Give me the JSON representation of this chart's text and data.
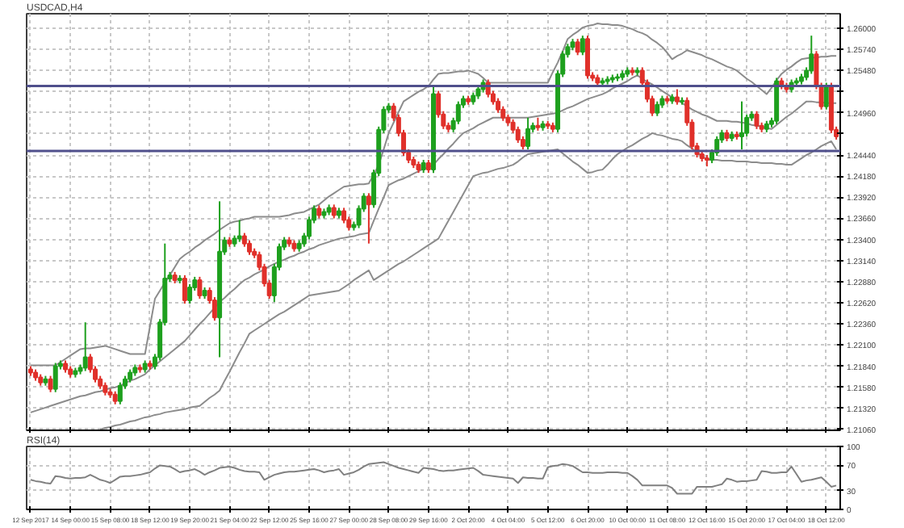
{
  "chart_data": [
    {
      "type": "candlestick",
      "title": "USDCAD,H4",
      "tick_labels": "y",
      "grid": true,
      "colors": [
        "#e0302a",
        "#e0302a",
        "#e0302a",
        "#1ea01e",
        "#e0302a",
        "#1ea01e",
        "#1ea01e",
        "#e0302a",
        "#e0302a",
        "#1ea01e",
        "#1ea01e",
        "#1ea01e",
        "#e0302a",
        "#e0302a",
        "#e0302a",
        "#e0302a",
        "#e0302a",
        "#e0302a",
        "#1ea01e",
        "#1ea01e",
        "#1ea01e",
        "#1ea01e",
        "#e0302a",
        "#1ea01e",
        "#e0302a",
        "#1ea01e",
        "#1ea01e",
        "#1ea01e",
        "#1ea01e",
        "#e0302a",
        "#1ea01e",
        "#e0302a",
        "#1ea01e",
        "#1ea01e",
        "#e0302a",
        "#1ea01e",
        "#e0302a",
        "#e0302a",
        "#1ea01e",
        "#1ea01e",
        "#e0302a",
        "#1ea01e",
        "#1ea01e",
        "#e0302a",
        "#e0302a",
        "#e0302a",
        "#e0302a",
        "#e0302a",
        "#e0302a",
        "#1ea01e",
        "#1ea01e",
        "#1ea01e",
        "#e0302a",
        "#e0302a",
        "#1ea01e",
        "#1ea01e",
        "#1ea01e",
        "#1ea01e",
        "#e0302a",
        "#1ea01e",
        "#1ea01e",
        "#e0302a",
        "#1ea01e",
        "#e0302a",
        "#e0302a",
        "#1ea01e",
        "#1ea01e",
        "#1ea01e",
        "#e0302a",
        "#1ea01e",
        "#1ea01e",
        "#1ea01e",
        "#1ea01e",
        "#e0302a",
        "#e0302a",
        "#e0302a",
        "#e0302a",
        "#e0302a",
        "#e0302a",
        "#1ea01e",
        "#e0302a",
        "#1ea01e",
        "#e0302a",
        "#e0302a",
        "#e0302a",
        "#1ea01e",
        "#1ea01e",
        "#1ea01e",
        "#e0302a",
        "#1ea01e",
        "#1ea01e",
        "#1ea01e",
        "#e0302a",
        "#e0302a",
        "#e0302a",
        "#e0302a",
        "#e0302a",
        "#e0302a",
        "#e0302a",
        "#e0302a",
        "#1ea01e",
        "#1ea01e",
        "#e0302a",
        "#1ea01e",
        "#e0302a",
        "#e0302a",
        "#1ea01e",
        "#1ea01e",
        "#1ea01e",
        "#1ea01e",
        "#e0302a",
        "#1ea01e",
        "#e0302a",
        "#e0302a",
        "#e0302a",
        "#1ea01e",
        "#1ea01e",
        "#1ea01e",
        "#1ea01e",
        "#1ea01e",
        "#1ea01e",
        "#e0302a",
        "#1ea01e",
        "#e0302a",
        "#e0302a",
        "#e0302a",
        "#1ea01e",
        "#1ea01e",
        "#e0302a",
        "#1ea01e",
        "#e0302a",
        "#1ea01e",
        "#e0302a",
        "#e0302a",
        "#e0302a",
        "#e0302a",
        "#e0302a",
        "#1ea01e",
        "#1ea01e",
        "#1ea01e",
        "#e0302a",
        "#1ea01e",
        "#e0302a",
        "#1ea01e",
        "#1ea01e",
        "#1ea01e",
        "#e0302a",
        "#e0302a",
        "#1ea01e",
        "#1ea01e",
        "#1ea01e",
        "#e0302a",
        "#e0302a",
        "#1ea01e",
        "#1ea01e",
        "#1ea01e",
        "#1ea01e",
        "#1ea01e",
        "#e0302a",
        "#e0302a",
        "#1ea01e",
        "#e0302a",
        "#e0302a"
      ],
      "ohlc": [
        [
          1.218,
          1.2184,
          1.2172,
          1.2176
        ],
        [
          1.2176,
          1.218,
          1.2166,
          1.217
        ],
        [
          1.217,
          1.2174,
          1.216,
          1.2164
        ],
        [
          1.2164,
          1.2172,
          1.216,
          1.2168
        ],
        [
          1.2168,
          1.2172,
          1.2152,
          1.2156
        ],
        [
          1.2156,
          1.2188,
          1.2152,
          1.2184
        ],
        [
          1.2184,
          1.2191,
          1.218,
          1.2187
        ],
        [
          1.2187,
          1.2191,
          1.2176,
          1.218
        ],
        [
          1.218,
          1.2184,
          1.217,
          1.2174
        ],
        [
          1.2174,
          1.2182,
          1.217,
          1.2178
        ],
        [
          1.2178,
          1.2186,
          1.2174,
          1.2182
        ],
        [
          1.2182,
          1.2238,
          1.2178,
          1.2195
        ],
        [
          1.2195,
          1.2199,
          1.2176,
          1.218
        ],
        [
          1.218,
          1.2184,
          1.2164,
          1.2168
        ],
        [
          1.2168,
          1.2172,
          1.2156,
          1.216
        ],
        [
          1.216,
          1.2164,
          1.2148,
          1.2152
        ],
        [
          1.2152,
          1.2156,
          1.2145,
          1.2149
        ],
        [
          1.2149,
          1.2153,
          1.2137,
          1.2141
        ],
        [
          1.2141,
          1.2164,
          1.2137,
          1.216
        ],
        [
          1.216,
          1.2172,
          1.2156,
          1.2168
        ],
        [
          1.2168,
          1.218,
          1.2164,
          1.2176
        ],
        [
          1.2176,
          1.2186,
          1.2172,
          1.2182
        ],
        [
          1.2182,
          1.2186,
          1.2176,
          1.218
        ],
        [
          1.218,
          1.2191,
          1.2176,
          1.2187
        ],
        [
          1.2187,
          1.2191,
          1.218,
          1.2184
        ],
        [
          1.2184,
          1.2199,
          1.218,
          1.2195
        ],
        [
          1.2195,
          1.2242,
          1.2191,
          1.2238
        ],
        [
          1.2238,
          1.2335,
          1.2234,
          1.2292
        ],
        [
          1.2292,
          1.23,
          1.2288,
          1.2296
        ],
        [
          1.2296,
          1.23,
          1.2286,
          1.229
        ],
        [
          1.229,
          1.2296,
          1.2286,
          1.2292
        ],
        [
          1.2292,
          1.2296,
          1.2261,
          1.2265
        ],
        [
          1.2265,
          1.2285,
          1.2261,
          1.2281
        ],
        [
          1.2281,
          1.2294,
          1.2277,
          1.229
        ],
        [
          1.229,
          1.2294,
          1.2267,
          1.2271
        ],
        [
          1.2271,
          1.2281,
          1.2267,
          1.2277
        ],
        [
          1.2277,
          1.2281,
          1.2261,
          1.2265
        ],
        [
          1.2265,
          1.2269,
          1.224,
          1.2244
        ],
        [
          1.2244,
          1.2387,
          1.2195,
          1.2325
        ],
        [
          1.2325,
          1.2343,
          1.2321,
          1.2339
        ],
        [
          1.2339,
          1.2343,
          1.2331,
          1.2335
        ],
        [
          1.2335,
          1.2345,
          1.2331,
          1.2341
        ],
        [
          1.2341,
          1.2364,
          1.2337,
          1.2344
        ],
        [
          1.2344,
          1.2348,
          1.2331,
          1.2335
        ],
        [
          1.2335,
          1.2339,
          1.2321,
          1.2325
        ],
        [
          1.2325,
          1.2329,
          1.2317,
          1.2321
        ],
        [
          1.2321,
          1.2325,
          1.2302,
          1.2306
        ],
        [
          1.2306,
          1.231,
          1.2282,
          1.2286
        ],
        [
          1.2286,
          1.229,
          1.2267,
          1.2271
        ],
        [
          1.2271,
          1.231,
          1.2263,
          1.2306
        ],
        [
          1.2306,
          1.2335,
          1.2302,
          1.2331
        ],
        [
          1.2331,
          1.2343,
          1.2327,
          1.2339
        ],
        [
          1.2339,
          1.2343,
          1.2331,
          1.2335
        ],
        [
          1.2335,
          1.2339,
          1.2325,
          1.2329
        ],
        [
          1.2329,
          1.2339,
          1.2325,
          1.2335
        ],
        [
          1.2335,
          1.2348,
          1.2331,
          1.2344
        ],
        [
          1.2344,
          1.2368,
          1.234,
          1.2364
        ],
        [
          1.2364,
          1.2382,
          1.236,
          1.2378
        ],
        [
          1.2378,
          1.2382,
          1.2366,
          1.237
        ],
        [
          1.237,
          1.2378,
          1.2366,
          1.2374
        ],
        [
          1.2374,
          1.2383,
          1.237,
          1.2379
        ],
        [
          1.2379,
          1.2383,
          1.2366,
          1.237
        ],
        [
          1.237,
          1.2379,
          1.2366,
          1.2375
        ],
        [
          1.2375,
          1.2379,
          1.236,
          1.2364
        ],
        [
          1.2364,
          1.2368,
          1.2351,
          1.2355
        ],
        [
          1.2355,
          1.2362,
          1.2351,
          1.2358
        ],
        [
          1.2358,
          1.2382,
          1.2354,
          1.2378
        ],
        [
          1.2378,
          1.2397,
          1.2374,
          1.2393
        ],
        [
          1.2393,
          1.2397,
          1.2335,
          1.2383
        ],
        [
          1.2383,
          1.2426,
          1.2379,
          1.2422
        ],
        [
          1.2422,
          1.2479,
          1.2418,
          1.2475
        ],
        [
          1.2475,
          1.2504,
          1.2471,
          1.25
        ],
        [
          1.25,
          1.2508,
          1.2496,
          1.2504
        ],
        [
          1.2504,
          1.2508,
          1.2486,
          1.249
        ],
        [
          1.249,
          1.2494,
          1.2467,
          1.2471
        ],
        [
          1.2471,
          1.2475,
          1.2443,
          1.2447
        ],
        [
          1.2447,
          1.2451,
          1.2434,
          1.2438
        ],
        [
          1.2438,
          1.2442,
          1.2428,
          1.2432
        ],
        [
          1.2432,
          1.2436,
          1.2422,
          1.2426
        ],
        [
          1.2426,
          1.2438,
          1.2422,
          1.2434
        ],
        [
          1.2434,
          1.2438,
          1.2422,
          1.2426
        ],
        [
          1.2426,
          1.2529,
          1.2422,
          1.2519
        ],
        [
          1.2519,
          1.2523,
          1.249,
          1.2494
        ],
        [
          1.2494,
          1.2498,
          1.2476,
          1.248
        ],
        [
          1.248,
          1.2484,
          1.2472,
          1.2476
        ],
        [
          1.2476,
          1.249,
          1.2472,
          1.2486
        ],
        [
          1.2486,
          1.251,
          1.2482,
          1.2506
        ],
        [
          1.2506,
          1.2517,
          1.2502,
          1.2513
        ],
        [
          1.2513,
          1.2517,
          1.2506,
          1.251
        ],
        [
          1.251,
          1.2521,
          1.2506,
          1.2517
        ],
        [
          1.2517,
          1.2529,
          1.2513,
          1.2525
        ],
        [
          1.2525,
          1.2537,
          1.2521,
          1.2533
        ],
        [
          1.2533,
          1.2537,
          1.2515,
          1.2519
        ],
        [
          1.2519,
          1.2523,
          1.2506,
          1.251
        ],
        [
          1.251,
          1.2514,
          1.2496,
          1.25
        ],
        [
          1.25,
          1.2504,
          1.2486,
          1.249
        ],
        [
          1.249,
          1.2494,
          1.248,
          1.2484
        ],
        [
          1.2484,
          1.2488,
          1.2471,
          1.2475
        ],
        [
          1.2475,
          1.2479,
          1.2459,
          1.2463
        ],
        [
          1.2463,
          1.2467,
          1.2451,
          1.2455
        ],
        [
          1.2455,
          1.249,
          1.2451,
          1.2476
        ],
        [
          1.2476,
          1.2484,
          1.2472,
          1.248
        ],
        [
          1.248,
          1.249,
          1.2474,
          1.2478
        ],
        [
          1.2478,
          1.2486,
          1.2474,
          1.2482
        ],
        [
          1.2482,
          1.2486,
          1.2476,
          1.248
        ],
        [
          1.248,
          1.2484,
          1.2472,
          1.2476
        ],
        [
          1.2476,
          1.2548,
          1.2472,
          1.2544
        ],
        [
          1.2544,
          1.2572,
          1.254,
          1.2568
        ],
        [
          1.2568,
          1.2581,
          1.2564,
          1.2577
        ],
        [
          1.2577,
          1.2587,
          1.2573,
          1.2583
        ],
        [
          1.2583,
          1.2587,
          1.2567,
          1.2571
        ],
        [
          1.2571,
          1.2591,
          1.2567,
          1.2587
        ],
        [
          1.2587,
          1.2591,
          1.2538,
          1.2542
        ],
        [
          1.2542,
          1.2546,
          1.2535,
          1.2539
        ],
        [
          1.2539,
          1.2543,
          1.2529,
          1.2533
        ],
        [
          1.2533,
          1.2539,
          1.2529,
          1.2535
        ],
        [
          1.2535,
          1.2541,
          1.2531,
          1.2537
        ],
        [
          1.2537,
          1.2543,
          1.2533,
          1.2539
        ],
        [
          1.2539,
          1.2544,
          1.2535,
          1.254
        ],
        [
          1.254,
          1.2548,
          1.2536,
          1.2544
        ],
        [
          1.2544,
          1.2552,
          1.254,
          1.2548
        ],
        [
          1.2548,
          1.2552,
          1.2542,
          1.2546
        ],
        [
          1.2546,
          1.2552,
          1.2542,
          1.2548
        ],
        [
          1.2548,
          1.2552,
          1.2529,
          1.2533
        ],
        [
          1.2533,
          1.2537,
          1.2509,
          1.2513
        ],
        [
          1.2513,
          1.2517,
          1.2492,
          1.2496
        ],
        [
          1.2496,
          1.251,
          1.2492,
          1.2506
        ],
        [
          1.2506,
          1.2517,
          1.2502,
          1.2513
        ],
        [
          1.2513,
          1.2517,
          1.2507,
          1.2511
        ],
        [
          1.2511,
          1.2519,
          1.2507,
          1.2515
        ],
        [
          1.2515,
          1.2525,
          1.2506,
          1.251
        ],
        [
          1.251,
          1.2515,
          1.2506,
          1.2511
        ],
        [
          1.2511,
          1.2515,
          1.248,
          1.2484
        ],
        [
          1.2484,
          1.2488,
          1.2451,
          1.2455
        ],
        [
          1.2455,
          1.2459,
          1.2441,
          1.2445
        ],
        [
          1.2445,
          1.2449,
          1.2436,
          1.244
        ],
        [
          1.244,
          1.2444,
          1.243,
          1.2438
        ],
        [
          1.2438,
          1.2451,
          1.2434,
          1.2447
        ],
        [
          1.2447,
          1.2467,
          1.2443,
          1.2463
        ],
        [
          1.2463,
          1.2475,
          1.2459,
          1.2471
        ],
        [
          1.2471,
          1.2475,
          1.2461,
          1.2465
        ],
        [
          1.2465,
          1.2473,
          1.2461,
          1.2469
        ],
        [
          1.2469,
          1.2473,
          1.2463,
          1.2467
        ],
        [
          1.2467,
          1.251,
          1.2451,
          1.2471
        ],
        [
          1.2471,
          1.2494,
          1.2467,
          1.249
        ],
        [
          1.249,
          1.2498,
          1.2486,
          1.2494
        ],
        [
          1.2494,
          1.2498,
          1.2476,
          1.248
        ],
        [
          1.248,
          1.2484,
          1.2472,
          1.2476
        ],
        [
          1.2476,
          1.2486,
          1.2472,
          1.2482
        ],
        [
          1.2482,
          1.249,
          1.2478,
          1.2486
        ],
        [
          1.2486,
          1.2539,
          1.2482,
          1.2535
        ],
        [
          1.2535,
          1.2539,
          1.2525,
          1.2529
        ],
        [
          1.2529,
          1.2533,
          1.2521,
          1.2525
        ],
        [
          1.2525,
          1.2537,
          1.2521,
          1.2533
        ],
        [
          1.2533,
          1.2539,
          1.2529,
          1.2535
        ],
        [
          1.2535,
          1.2544,
          1.2531,
          1.254
        ],
        [
          1.254,
          1.2552,
          1.2536,
          1.2548
        ],
        [
          1.2548,
          1.2591,
          1.2544,
          1.2568
        ],
        [
          1.2568,
          1.2572,
          1.2525,
          1.2529
        ],
        [
          1.2529,
          1.2533,
          1.25,
          1.2504
        ],
        [
          1.2504,
          1.2533,
          1.25,
          1.2529
        ],
        [
          1.2529,
          1.2533,
          1.2471,
          1.2475
        ],
        [
          1.2475,
          1.2479,
          1.2463,
          1.2467
        ]
      ],
      "series": [
        {
          "type": "line",
          "color": "#8c8c8c",
          "values": [
            1.2185,
            1.2185,
            1.2185,
            1.2185,
            1.2185,
            1.2185,
            1.2189,
            1.2193,
            1.2197,
            1.2201,
            1.2205,
            1.2206,
            1.2206,
            1.2207,
            1.2208,
            1.2209,
            1.2207,
            1.2205,
            1.2203,
            1.2201,
            1.2199,
            1.2199,
            1.2199,
            1.2199,
            1.2233,
            1.2267,
            1.2277,
            1.2287,
            1.2296,
            1.2306,
            1.2316,
            1.2321,
            1.2325,
            1.233,
            1.2334,
            1.2339,
            1.2343,
            1.2347,
            1.2352,
            1.2356,
            1.236,
            1.2362,
            1.2363,
            1.2365,
            1.2366,
            1.2368,
            1.2368,
            1.2368,
            1.2368,
            1.2368,
            1.2368,
            1.2369,
            1.237,
            1.2372,
            1.2373,
            1.2374,
            1.2377,
            1.238,
            1.2383,
            1.2388,
            1.2393,
            1.2397,
            1.2401,
            1.2405,
            1.2406,
            1.2407,
            1.2408,
            1.2408,
            1.2409,
            1.242,
            1.2432,
            1.2451,
            1.2471,
            1.2484,
            1.2497,
            1.251,
            1.2514,
            1.2518,
            1.2522,
            1.2525,
            1.2529,
            1.2537,
            1.2544,
            1.2545,
            1.2545,
            1.2546,
            1.2547,
            1.2547,
            1.2548,
            1.2546,
            1.2544,
            1.2539,
            1.2533,
            1.2533,
            1.2533,
            1.2533,
            1.2533,
            1.2533,
            1.2533,
            1.2533,
            1.2533,
            1.2533,
            1.2533,
            1.2533,
            1.2533,
            1.2546,
            1.2558,
            1.2572,
            1.2587,
            1.2592,
            1.2596,
            1.2601,
            1.2603,
            1.2604,
            1.2606,
            1.2605,
            1.2605,
            1.2604,
            1.2604,
            1.2603,
            1.2601,
            1.2599,
            1.2596,
            1.2594,
            1.2591,
            1.2586,
            1.2582,
            1.2577,
            1.257,
            1.2562,
            1.2566,
            1.2569,
            1.2573,
            1.2571,
            1.2569,
            1.2567,
            1.2564,
            1.2562,
            1.2559,
            1.2556,
            1.2553,
            1.2551,
            1.2548,
            1.2543,
            1.2538,
            1.2534,
            1.2529,
            1.2524,
            1.2519,
            1.2527,
            1.2536,
            1.2544,
            1.2549,
            1.2553,
            1.2558,
            1.2562,
            1.2563,
            1.2564,
            1.2564,
            1.2565,
            1.2565,
            1.2566,
            1.2566
          ]
        },
        {
          "type": "line",
          "color": "#8c8c8c",
          "values": [
            1.2127,
            1.2129,
            1.2131,
            1.2133,
            1.2135,
            1.2137,
            1.2139,
            1.2141,
            1.2143,
            1.2145,
            1.2147,
            1.2148,
            1.215,
            1.2152,
            1.2153,
            1.2155,
            1.2157,
            1.2158,
            1.216,
            1.2163,
            1.2166,
            1.2168,
            1.2171,
            1.2174,
            1.218,
            1.2185,
            1.219,
            1.2195,
            1.22,
            1.2205,
            1.221,
            1.2215,
            1.2222,
            1.2229,
            1.2236,
            1.2242,
            1.2249,
            1.2256,
            1.2263,
            1.2268,
            1.2274,
            1.2279,
            1.2285,
            1.229,
            1.2293,
            1.2297,
            1.23,
            1.2303,
            1.2307,
            1.231,
            1.2313,
            1.2315,
            1.2318,
            1.232,
            1.2323,
            1.2325,
            1.2328,
            1.233,
            1.2333,
            1.2335,
            1.2337,
            1.2339,
            1.2341,
            1.2342,
            1.2343,
            1.2344,
            1.2346,
            1.2347,
            1.2348,
            1.2363,
            1.2378,
            1.2392,
            1.2407,
            1.241,
            1.2413,
            1.2415,
            1.2418,
            1.2421,
            1.2424,
            1.2427,
            1.2429,
            1.2432,
            1.2439,
            1.2445,
            1.2452,
            1.2458,
            1.2465,
            1.2471,
            1.2474,
            1.2477,
            1.2481,
            1.2484,
            1.2487,
            1.249,
            1.249,
            1.249,
            1.249,
            1.249,
            1.249,
            1.249,
            1.249,
            1.2491,
            1.2492,
            1.2493,
            1.2494,
            1.2495,
            1.2496,
            1.2499,
            1.2502,
            1.2504,
            1.2507,
            1.251,
            1.2513,
            1.2515,
            1.2517,
            1.2519,
            1.2522,
            1.2526,
            1.2529,
            1.2532,
            1.2535,
            1.2539,
            1.2542,
            1.2538,
            1.2534,
            1.2531,
            1.2527,
            1.2523,
            1.2519,
            1.2515,
            1.2512,
            1.2508,
            1.2504,
            1.25,
            1.2497,
            1.2494,
            1.2492,
            1.2489,
            1.2486,
            1.2486,
            1.2486,
            1.2485,
            1.2485,
            1.2484,
            1.2483,
            1.2481,
            1.248,
            1.2479,
            1.2477,
            1.2476,
            1.2481,
            1.2486,
            1.2491,
            1.2495,
            1.25,
            1.2505,
            1.251,
            1.251,
            1.2509,
            1.2509,
            1.2508,
            1.2508,
            1.2508
          ]
        },
        {
          "type": "line",
          "color": "#8c8c8c",
          "values": [
            null,
            null,
            null,
            null,
            null,
            null,
            null,
            null,
            null,
            null,
            null,
            null,
            null,
            null,
            1.2106,
            1.2108,
            1.2109,
            1.2111,
            1.2112,
            1.2114,
            1.2116,
            1.2117,
            1.2119,
            1.2121,
            1.2122,
            1.2124,
            1.2125,
            1.2127,
            1.2128,
            1.2129,
            1.213,
            1.2131,
            1.2133,
            1.2134,
            1.2135,
            1.214,
            1.2145,
            1.2149,
            1.2154,
            1.2166,
            1.2177,
            1.2189,
            1.2201,
            1.2212,
            1.2224,
            1.2228,
            1.2232,
            1.2236,
            1.224,
            1.2244,
            1.2248,
            1.2251,
            1.2255,
            1.2259,
            1.2263,
            1.2267,
            1.2271,
            1.2272,
            1.2273,
            1.2274,
            1.2275,
            1.2276,
            1.2277,
            1.2281,
            1.2285,
            1.229,
            1.2294,
            1.2298,
            1.2302,
            1.229,
            1.2294,
            1.2298,
            1.2302,
            1.2306,
            1.231,
            1.2313,
            1.2317,
            1.2321,
            1.2325,
            1.2329,
            1.2333,
            1.2337,
            1.2341,
            1.2352,
            1.2363,
            1.2374,
            1.2385,
            1.2396,
            1.2407,
            1.2418,
            1.242,
            1.2422,
            1.2423,
            1.2425,
            1.2427,
            1.2428,
            1.243,
            1.2432,
            1.2436,
            1.2441,
            1.2445,
            1.2446,
            1.2447,
            1.2448,
            1.2449,
            1.245,
            1.2451,
            1.2446,
            1.2441,
            1.2436,
            1.2432,
            1.2427,
            1.2422,
            1.2423,
            1.2425,
            1.2426,
            1.2432,
            1.2439,
            1.2445,
            1.2449,
            1.2453,
            1.2456,
            1.246,
            1.2464,
            1.2467,
            1.2471,
            1.2469,
            1.2468,
            1.2466,
            1.2464,
            1.2463,
            1.2461,
            1.2456,
            1.2452,
            1.2447,
            1.2443,
            1.2438,
            1.2438,
            1.2438,
            1.2437,
            1.2437,
            1.2437,
            1.2436,
            1.2436,
            1.2436,
            1.2435,
            1.2435,
            1.2434,
            1.2434,
            1.2434,
            1.2433,
            1.2433,
            1.2432,
            1.2432,
            1.2436,
            1.244,
            1.2444,
            1.2447,
            1.2451,
            1.2455,
            1.2458,
            1.2461,
            1.2451
          ]
        }
      ],
      "ylim": [
        1.2105,
        1.2618
      ],
      "yticks": [
        {
          "value": 1.2106,
          "label": "1.21060"
        },
        {
          "value": 1.2132,
          "label": "1.21320"
        },
        {
          "value": 1.2158,
          "label": "1.21580"
        },
        {
          "value": 1.2184,
          "label": "1.21840"
        },
        {
          "value": 1.221,
          "label": "1.22100"
        },
        {
          "value": 1.2236,
          "label": "1.22360"
        },
        {
          "value": 1.2262,
          "label": "1.22620"
        },
        {
          "value": 1.2288,
          "label": "1.22880"
        },
        {
          "value": 1.2314,
          "label": "1.23140"
        },
        {
          "value": 1.234,
          "label": "1.23400"
        },
        {
          "value": 1.2366,
          "label": "1.23660"
        },
        {
          "value": 1.2392,
          "label": "1.23920"
        },
        {
          "value": 1.2418,
          "label": "1.24180"
        },
        {
          "value": 1.2444,
          "label": "1.24440"
        },
        {
          "value": 1.247,
          "label": null
        },
        {
          "value": 1.2496,
          "label": "1.24960"
        },
        {
          "value": 1.2522,
          "label": null
        },
        {
          "value": 1.2548,
          "label": "1.25480"
        },
        {
          "value": 1.2574,
          "label": "1.25740"
        },
        {
          "value": 1.26,
          "label": "1.26000"
        }
      ],
      "ref_lines": [
        {
          "axis": "y",
          "value": 1.2529,
          "color": "#50508c"
        },
        {
          "axis": "y",
          "value": 1.2449,
          "color": "#50508c"
        }
      ]
    },
    {
      "type": "line",
      "title": "RSI(14)",
      "grid": true,
      "categories": [
        "12 Sep 2017",
        null,
        null,
        null,
        null,
        null,
        null,
        null,
        "14 Sep 00:00",
        null,
        null,
        null,
        null,
        null,
        null,
        null,
        "15 Sep 08:00",
        null,
        null,
        null,
        null,
        null,
        null,
        null,
        "18 Sep 12:00",
        null,
        null,
        null,
        null,
        null,
        null,
        null,
        "19 Sep 20:00",
        null,
        null,
        null,
        null,
        null,
        null,
        null,
        "21 Sep 04:00",
        null,
        null,
        null,
        null,
        null,
        null,
        null,
        "22 Sep 12:00",
        null,
        null,
        null,
        null,
        null,
        null,
        null,
        "25 Sep 16:00",
        null,
        null,
        null,
        null,
        null,
        null,
        null,
        "27 Sep 00:00",
        null,
        null,
        null,
        null,
        null,
        null,
        null,
        "28 Sep 08:00",
        null,
        null,
        null,
        null,
        null,
        null,
        null,
        "29 Sep 16:00",
        null,
        null,
        null,
        null,
        null,
        null,
        null,
        "2 Oct 20:00",
        null,
        null,
        null,
        null,
        null,
        null,
        null,
        "4 Oct 04:00",
        null,
        null,
        null,
        null,
        null,
        null,
        null,
        "5 Oct 12:00",
        null,
        null,
        null,
        null,
        null,
        null,
        null,
        "6 Oct 20:00",
        null,
        null,
        null,
        null,
        null,
        null,
        null,
        "10 Oct 00:00",
        null,
        null,
        null,
        null,
        null,
        null,
        null,
        "11 Oct 08:00",
        null,
        null,
        null,
        null,
        null,
        null,
        null,
        "12 Oct 16:00",
        null,
        null,
        null,
        null,
        null,
        null,
        null,
        "15 Oct 20:00",
        null,
        null,
        null,
        null,
        null,
        null,
        null,
        "17 Oct 04:00",
        null,
        null,
        null,
        null,
        null,
        null,
        null,
        "18 Oct 12:00",
        null,
        null
      ],
      "series": [
        {
          "color": "#808080",
          "values": [
            47,
            45,
            44,
            42,
            41,
            53,
            52,
            50,
            49,
            50,
            50,
            51,
            55,
            51,
            47,
            45,
            42,
            47,
            52,
            53,
            53,
            54,
            55,
            57,
            59,
            65,
            70,
            69,
            68,
            64,
            59,
            61,
            62,
            64,
            60,
            55,
            59,
            62,
            66,
            67,
            68,
            66,
            63,
            61,
            60,
            60,
            59,
            47,
            51,
            55,
            57,
            59,
            60,
            60,
            61,
            62,
            63,
            64,
            62,
            59,
            61,
            62,
            64,
            55,
            57,
            59,
            63,
            68,
            72,
            73,
            74,
            75,
            72,
            69,
            66,
            64,
            62,
            60,
            58,
            66,
            65,
            64,
            62,
            61,
            62,
            62,
            63,
            64,
            65,
            66,
            61,
            55,
            54,
            53,
            52,
            51,
            50,
            49,
            42,
            51,
            50,
            50,
            49,
            49,
            67,
            69,
            70,
            72,
            71,
            69,
            64,
            59,
            59,
            58,
            58,
            58,
            59,
            59,
            59,
            58,
            58,
            53,
            47,
            38,
            38,
            38,
            38,
            38,
            38,
            34,
            25,
            25,
            25,
            25,
            36,
            36,
            36,
            36,
            38,
            40,
            49,
            47,
            44,
            45,
            45,
            46,
            47,
            61,
            60,
            58,
            58,
            59,
            59,
            68,
            56,
            44,
            46,
            47,
            49,
            51,
            44,
            36,
            38
          ]
        }
      ],
      "ylim": [
        0,
        100
      ],
      "yticks": [
        0,
        30,
        70,
        100
      ]
    }
  ]
}
